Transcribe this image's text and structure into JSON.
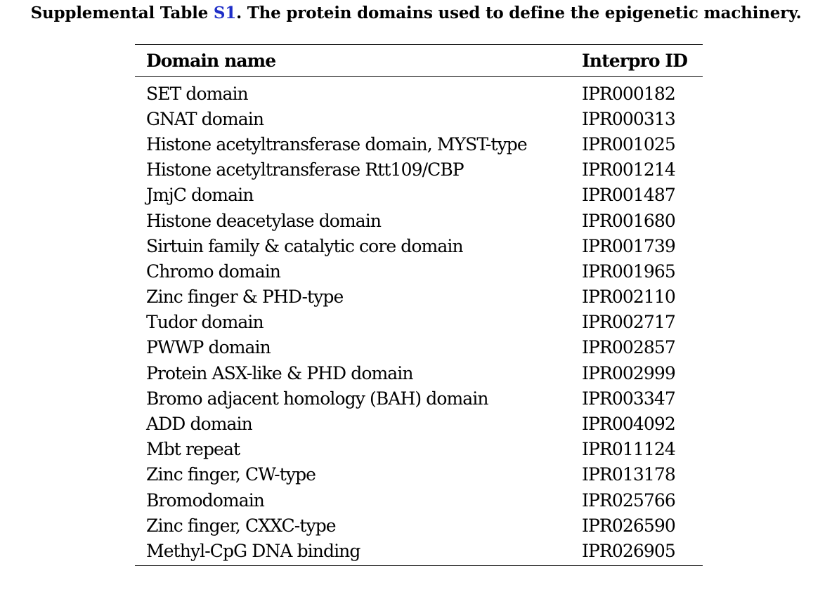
{
  "caption": {
    "prefix": "Supplemental Table ",
    "ref": "S1",
    "suffix": ". The protein domains used to define the epigenetic machinery."
  },
  "table": {
    "headers": [
      "Domain name",
      "Interpro ID"
    ],
    "rows": [
      [
        "SET domain",
        "IPR000182"
      ],
      [
        "GNAT domain",
        "IPR000313"
      ],
      [
        "Histone acetyltransferase domain, MYST-type",
        "IPR001025"
      ],
      [
        "Histone acetyltransferase Rtt109/CBP",
        "IPR001214"
      ],
      [
        "JmjC domain",
        "IPR001487"
      ],
      [
        "Histone deacetylase domain",
        "IPR001680"
      ],
      [
        "Sirtuin family & catalytic core domain",
        "IPR001739"
      ],
      [
        "Chromo domain",
        "IPR001965"
      ],
      [
        "Zinc finger & PHD-type",
        "IPR002110"
      ],
      [
        "Tudor domain",
        "IPR002717"
      ],
      [
        "PWWP domain",
        "IPR002857"
      ],
      [
        "Protein ASX-like & PHD domain",
        "IPR002999"
      ],
      [
        "Bromo adjacent homology (BAH) domain",
        "IPR003347"
      ],
      [
        "ADD domain",
        "IPR004092"
      ],
      [
        "Mbt repeat",
        "IPR011124"
      ],
      [
        "Zinc finger, CW-type",
        "IPR013178"
      ],
      [
        "Bromodomain",
        "IPR025766"
      ],
      [
        "Zinc finger, CXXC-type",
        "IPR026590"
      ],
      [
        "Methyl-CpG DNA binding",
        "IPR026905"
      ]
    ]
  },
  "colors": {
    "text": "#000000",
    "reference_link": "#1f2fc8",
    "background": "#ffffff"
  }
}
